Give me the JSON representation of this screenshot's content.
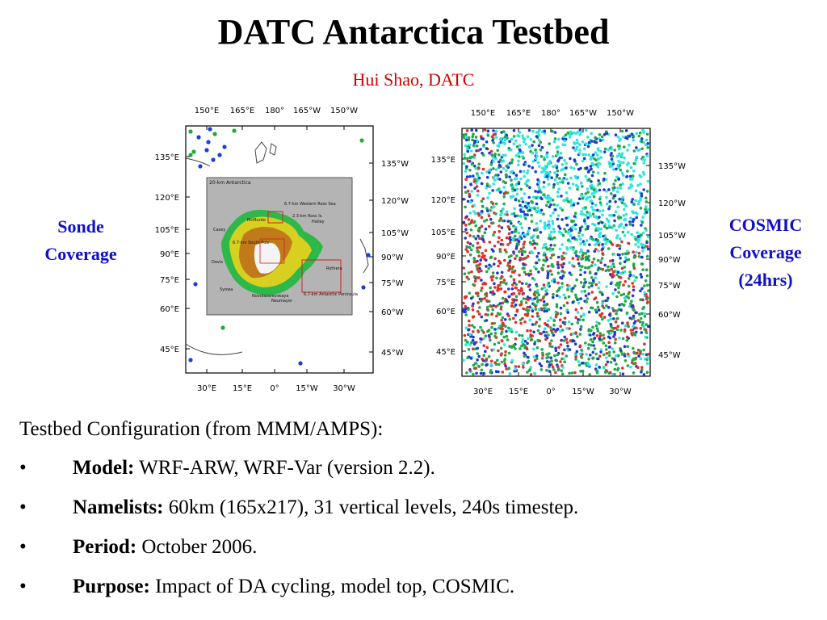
{
  "title": "DATC Antarctica Testbed",
  "author": "Hui Shao, DATC",
  "left_map": {
    "label_line1": "Sonde",
    "label_line2": "Coverage",
    "top_ticks": [
      "150°E",
      "165°E",
      "180°",
      "165°W",
      "150°W"
    ],
    "bottom_ticks": [
      "30°E",
      "15°E",
      "0°",
      "15°W",
      "30°W"
    ],
    "left_ticks": [
      "135°E",
      "120°E",
      "105°E",
      "90°E",
      "75°E",
      "60°E",
      "45°E"
    ],
    "right_ticks": [
      "135°W",
      "120°W",
      "105°W",
      "90°W",
      "75°W",
      "60°W",
      "45°W"
    ],
    "inset": {
      "title": "20-km Antarctica",
      "labels": [
        "6.7-km Western Ross Sea",
        "2.3-km Ross Is.",
        "McMurdo",
        "6.7-km South Pole",
        "Casey",
        "Davis",
        "Syowa",
        "Neumayer",
        "Novolazarevskaya",
        "6.7-km Antarctic Peninsula",
        "Rothera",
        "Halley"
      ]
    }
  },
  "right_map": {
    "label_line1": "COSMIC",
    "label_line2": "Coverage",
    "label_line3": "(24hrs)",
    "top_ticks": [
      "150°E",
      "165°E",
      "180°",
      "165°W",
      "150°W"
    ],
    "bottom_ticks": [
      "30°E",
      "15°E",
      "0°",
      "15°W",
      "30°W"
    ],
    "left_ticks": [
      "135°E",
      "120°E",
      "105°E",
      "90°E",
      "75°E",
      "60°E",
      "45°E"
    ],
    "right_ticks": [
      "135°W",
      "120°W",
      "105°W",
      "90°W",
      "75°W",
      "60°W",
      "45°W"
    ]
  },
  "config": {
    "heading": "Testbed Configuration (from MMM/AMPS):",
    "bullet": "•",
    "items": [
      {
        "label": "Model:",
        "text": " WRF-ARW, WRF-Var (version 2.2)."
      },
      {
        "label": "Namelists:",
        "text": " 60km (165x217), 31 vertical levels, 240s timestep."
      },
      {
        "label": "Period:",
        "text": " October 2006."
      },
      {
        "label": "Purpose:",
        "text": " Impact of DA cycling, model top, COSMIC."
      }
    ]
  },
  "colors": {
    "title": "#000000",
    "author": "#d40000",
    "side_label": "#1010c8",
    "sonde_blue": "#1a3fd6",
    "sonde_green": "#1fa83a",
    "cosmic_cyan": "#2ee6e0",
    "cosmic_blue": "#1c3ad0",
    "cosmic_green": "#22a84a",
    "cosmic_red": "#e0302a"
  }
}
